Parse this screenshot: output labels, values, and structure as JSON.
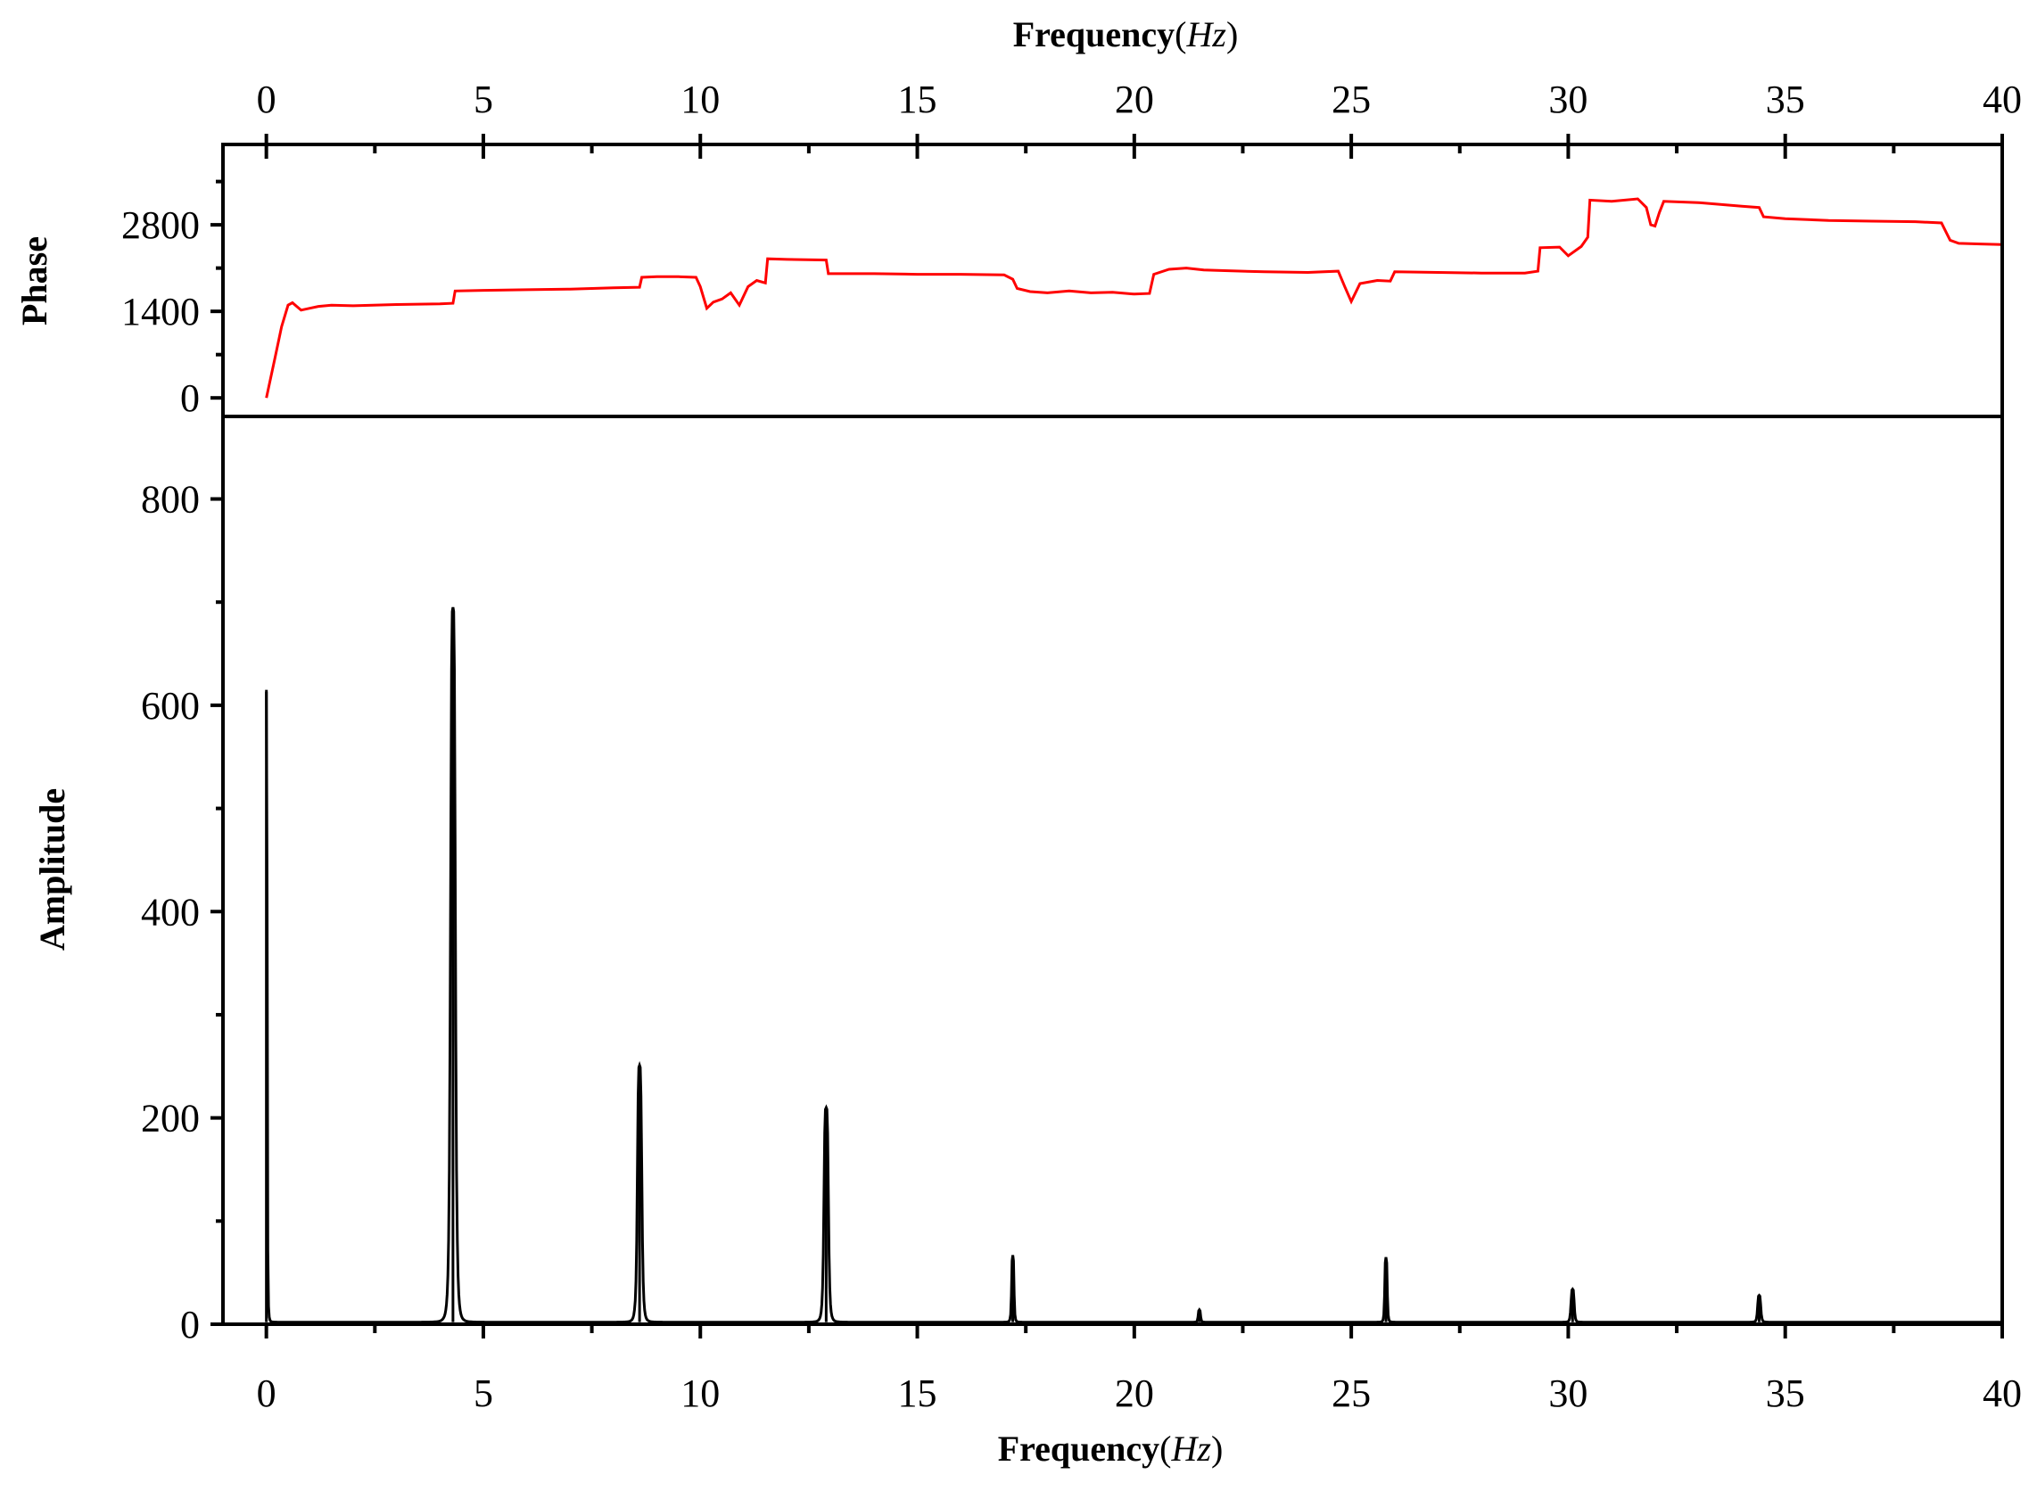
{
  "chart_data": [
    {
      "type": "line",
      "panel": "phase",
      "ylabel": "Phase",
      "xlabel_top": "Frequency",
      "xunit": "Hz",
      "xlim": [
        -1,
        40
      ],
      "ylim": [
        -300,
        4100
      ],
      "x_ticks": [
        0,
        5,
        10,
        15,
        20,
        25,
        30,
        35,
        40
      ],
      "x_tick_labels": [
        "0",
        "5",
        "10",
        "15",
        "20",
        "25",
        "30",
        "35",
        "40"
      ],
      "y_ticks": [
        0,
        1400,
        2800
      ],
      "y_tick_labels": [
        "0",
        "1400",
        "2800"
      ],
      "color": "#ff0000",
      "series": [
        {
          "x": [
            0,
            0.2,
            0.35,
            0.5,
            0.6,
            0.7,
            0.8,
            1.0,
            1.2,
            1.5,
            2.0,
            3.0,
            4.0,
            4.3,
            4.35,
            5.0,
            6.0,
            7.0,
            8.0,
            8.6,
            8.65,
            9.0,
            9.5,
            9.9,
            10.0,
            10.15,
            10.3,
            10.5,
            10.7,
            10.9,
            11.1,
            11.3,
            11.5,
            11.55,
            12.0,
            12.9,
            12.95,
            14.0,
            15.0,
            16.0,
            17.0,
            17.2,
            17.3,
            17.6,
            18.0,
            18.5,
            19.0,
            19.5,
            20.0,
            20.35,
            20.45,
            20.8,
            21.2,
            21.6,
            22.0,
            23.0,
            24.0,
            24.7,
            24.85,
            25.0,
            25.2,
            25.6,
            25.9,
            26.0,
            27.0,
            28.0,
            29.0,
            29.3,
            29.35,
            29.8,
            30.0,
            30.3,
            30.45,
            30.5,
            31.0,
            31.6,
            31.8,
            31.9,
            32.0,
            32.1,
            32.2,
            33.0,
            34.0,
            34.4,
            34.5,
            35.0,
            36.0,
            37.0,
            38.0,
            38.6,
            38.8,
            39.0,
            39.5,
            40.0
          ],
          "values": [
            0,
            650,
            1150,
            1500,
            1540,
            1480,
            1420,
            1450,
            1480,
            1500,
            1490,
            1510,
            1520,
            1530,
            1730,
            1740,
            1750,
            1760,
            1780,
            1790,
            1950,
            1960,
            1960,
            1950,
            1800,
            1450,
            1550,
            1600,
            1700,
            1500,
            1800,
            1900,
            1860,
            2250,
            2240,
            2230,
            2010,
            2010,
            2000,
            2000,
            1990,
            1920,
            1770,
            1720,
            1700,
            1730,
            1700,
            1710,
            1680,
            1690,
            2000,
            2080,
            2100,
            2070,
            2060,
            2040,
            2030,
            2050,
            1800,
            1560,
            1850,
            1900,
            1890,
            2040,
            2030,
            2020,
            2020,
            2050,
            2430,
            2440,
            2300,
            2450,
            2600,
            3200,
            3180,
            3220,
            3080,
            2800,
            2780,
            3000,
            3180,
            3160,
            3100,
            3080,
            2930,
            2900,
            2870,
            2860,
            2850,
            2830,
            2550,
            2500,
            2490,
            2480
          ]
        }
      ]
    },
    {
      "type": "line",
      "panel": "amplitude",
      "ylabel": "Amplitude",
      "xlabel": "Frequency",
      "xunit": "Hz",
      "xlim": [
        -1,
        40
      ],
      "ylim": [
        0,
        880
      ],
      "x_ticks": [
        0,
        5,
        10,
        15,
        20,
        25,
        30,
        35,
        40
      ],
      "x_tick_labels": [
        "0",
        "5",
        "10",
        "15",
        "20",
        "25",
        "30",
        "35",
        "40"
      ],
      "y_ticks": [
        0,
        200,
        400,
        600,
        800
      ],
      "y_tick_labels": [
        "0",
        "200",
        "400",
        "600",
        "800"
      ],
      "color": "#000000",
      "baseline": 2,
      "peaks": [
        {
          "x": 0.0,
          "value": 613,
          "width": 0.02
        },
        {
          "x": 4.3,
          "value": 693,
          "width": 0.06
        },
        {
          "x": 8.6,
          "value": 249,
          "width": 0.055
        },
        {
          "x": 12.9,
          "value": 208,
          "width": 0.055
        },
        {
          "x": 17.2,
          "value": 65,
          "width": 0.03
        },
        {
          "x": 21.5,
          "value": 12,
          "width": 0.03
        },
        {
          "x": 25.8,
          "value": 63,
          "width": 0.03
        },
        {
          "x": 30.1,
          "value": 32,
          "width": 0.04
        },
        {
          "x": 34.4,
          "value": 26,
          "width": 0.04
        }
      ]
    }
  ]
}
